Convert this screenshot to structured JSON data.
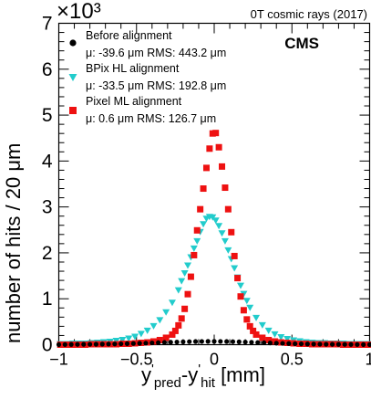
{
  "chart_data": {
    "type": "scatter",
    "header_right": "0T cosmic rays (2017)",
    "experiment_label": "CMS",
    "y_exponent_label": "×10³",
    "xlabel": {
      "main1": "y",
      "sup1": "'",
      "sub1": "pred",
      "mid": "-y",
      "sup2": "'",
      "sub2": "hit",
      "unit": " [mm]"
    },
    "ylabel": "number of hits / 20 μm",
    "xlim": [
      -1,
      1
    ],
    "ylim": [
      0,
      7
    ],
    "xticks": [
      -1,
      -0.5,
      0,
      0.5,
      1
    ],
    "xtick_labels": [
      "−1",
      "−0.5",
      "0",
      "0.5",
      "1"
    ],
    "yticks": [
      0,
      1,
      2,
      3,
      4,
      5,
      6,
      7
    ],
    "ytick_labels": [
      "0",
      "1",
      "2",
      "3",
      "4",
      "5",
      "6",
      "7"
    ],
    "y_scale_factor": 1000,
    "grid": false,
    "legend_position": "top-left",
    "series": [
      {
        "name": "Before alignment",
        "stats": "μ: -39.6 μm RMS: 443.2 μm",
        "marker": "circle",
        "color": "#000000",
        "points": [
          [
            -1.0,
            0.002
          ],
          [
            -0.96,
            0.004
          ],
          [
            -0.92,
            0.005
          ],
          [
            -0.88,
            0.006
          ],
          [
            -0.84,
            0.007
          ],
          [
            -0.8,
            0.009
          ],
          [
            -0.76,
            0.01
          ],
          [
            -0.72,
            0.012
          ],
          [
            -0.68,
            0.014
          ],
          [
            -0.64,
            0.016
          ],
          [
            -0.6,
            0.019
          ],
          [
            -0.56,
            0.022
          ],
          [
            -0.52,
            0.026
          ],
          [
            -0.48,
            0.03
          ],
          [
            -0.44,
            0.034
          ],
          [
            -0.4,
            0.039
          ],
          [
            -0.36,
            0.044
          ],
          [
            -0.32,
            0.049
          ],
          [
            -0.28,
            0.054
          ],
          [
            -0.24,
            0.058
          ],
          [
            -0.2,
            0.062
          ],
          [
            -0.16,
            0.066
          ],
          [
            -0.12,
            0.069
          ],
          [
            -0.08,
            0.071
          ],
          [
            -0.04,
            0.072
          ],
          [
            0.0,
            0.072
          ],
          [
            0.04,
            0.071
          ],
          [
            0.08,
            0.069
          ],
          [
            0.12,
            0.066
          ],
          [
            0.16,
            0.062
          ],
          [
            0.2,
            0.058
          ],
          [
            0.24,
            0.053
          ],
          [
            0.28,
            0.048
          ],
          [
            0.32,
            0.043
          ],
          [
            0.36,
            0.038
          ],
          [
            0.4,
            0.033
          ],
          [
            0.44,
            0.029
          ],
          [
            0.48,
            0.025
          ],
          [
            0.52,
            0.021
          ],
          [
            0.56,
            0.018
          ],
          [
            0.6,
            0.015
          ],
          [
            0.64,
            0.013
          ],
          [
            0.68,
            0.011
          ],
          [
            0.72,
            0.009
          ],
          [
            0.76,
            0.008
          ],
          [
            0.8,
            0.007
          ],
          [
            0.84,
            0.006
          ],
          [
            0.88,
            0.005
          ],
          [
            0.92,
            0.004
          ],
          [
            0.96,
            0.003
          ],
          [
            1.0,
            0.002
          ]
        ]
      },
      {
        "name": "BPix HL alignment",
        "stats": "μ: -33.5 μm RMS: 192.8 μm",
        "marker": "triangle-down",
        "color": "#22cccc",
        "points": [
          [
            -0.99,
            0.01
          ],
          [
            -0.95,
            0.01
          ],
          [
            -0.91,
            0.02
          ],
          [
            -0.87,
            0.02
          ],
          [
            -0.83,
            0.02
          ],
          [
            -0.79,
            0.03
          ],
          [
            -0.75,
            0.04
          ],
          [
            -0.71,
            0.05
          ],
          [
            -0.67,
            0.06
          ],
          [
            -0.63,
            0.08
          ],
          [
            -0.59,
            0.1
          ],
          [
            -0.55,
            0.13
          ],
          [
            -0.51,
            0.17
          ],
          [
            -0.47,
            0.23
          ],
          [
            -0.43,
            0.3
          ],
          [
            -0.39,
            0.4
          ],
          [
            -0.35,
            0.53
          ],
          [
            -0.31,
            0.7
          ],
          [
            -0.27,
            0.91
          ],
          [
            -0.23,
            1.18
          ],
          [
            -0.21,
            1.38
          ],
          [
            -0.19,
            1.55
          ],
          [
            -0.17,
            1.72
          ],
          [
            -0.15,
            1.9
          ],
          [
            -0.13,
            2.09
          ],
          [
            -0.11,
            2.25
          ],
          [
            -0.09,
            2.45
          ],
          [
            -0.07,
            2.62
          ],
          [
            -0.05,
            2.74
          ],
          [
            -0.03,
            2.78
          ],
          [
            -0.01,
            2.77
          ],
          [
            0.01,
            2.7
          ],
          [
            0.03,
            2.58
          ],
          [
            0.05,
            2.42
          ],
          [
            0.07,
            2.25
          ],
          [
            0.09,
            2.05
          ],
          [
            0.11,
            1.86
          ],
          [
            0.13,
            1.66
          ],
          [
            0.15,
            1.46
          ],
          [
            0.17,
            1.28
          ],
          [
            0.19,
            1.1
          ],
          [
            0.21,
            0.95
          ],
          [
            0.23,
            0.8
          ],
          [
            0.27,
            0.58
          ],
          [
            0.31,
            0.42
          ],
          [
            0.35,
            0.3
          ],
          [
            0.39,
            0.22
          ],
          [
            0.43,
            0.16
          ],
          [
            0.47,
            0.12
          ],
          [
            0.51,
            0.09
          ],
          [
            0.55,
            0.07
          ],
          [
            0.59,
            0.05
          ],
          [
            0.63,
            0.04
          ],
          [
            0.67,
            0.03
          ],
          [
            0.71,
            0.03
          ],
          [
            0.75,
            0.02
          ],
          [
            0.79,
            0.02
          ],
          [
            0.83,
            0.02
          ],
          [
            0.87,
            0.01
          ],
          [
            0.91,
            0.01
          ],
          [
            0.95,
            0.01
          ],
          [
            0.99,
            0.01
          ]
        ]
      },
      {
        "name": "Pixel ML alignment",
        "stats": "μ: 0.6 μm RMS: 126.7 μm",
        "marker": "square",
        "color": "#ee1111",
        "points": [
          [
            -0.99,
            0.0
          ],
          [
            -0.95,
            0.0
          ],
          [
            -0.91,
            0.0
          ],
          [
            -0.87,
            0.0
          ],
          [
            -0.83,
            0.0
          ],
          [
            -0.79,
            0.01
          ],
          [
            -0.75,
            0.01
          ],
          [
            -0.71,
            0.01
          ],
          [
            -0.67,
            0.01
          ],
          [
            -0.63,
            0.01
          ],
          [
            -0.59,
            0.02
          ],
          [
            -0.55,
            0.02
          ],
          [
            -0.51,
            0.03
          ],
          [
            -0.47,
            0.04
          ],
          [
            -0.43,
            0.05
          ],
          [
            -0.39,
            0.07
          ],
          [
            -0.35,
            0.1
          ],
          [
            -0.31,
            0.15
          ],
          [
            -0.27,
            0.22
          ],
          [
            -0.25,
            0.3
          ],
          [
            -0.23,
            0.42
          ],
          [
            -0.21,
            0.57
          ],
          [
            -0.19,
            0.78
          ],
          [
            -0.17,
            1.1
          ],
          [
            -0.15,
            1.48
          ],
          [
            -0.13,
            1.95
          ],
          [
            -0.11,
            2.49
          ],
          [
            -0.09,
            2.95
          ],
          [
            -0.07,
            3.4
          ],
          [
            -0.05,
            3.85
          ],
          [
            -0.03,
            4.27
          ],
          [
            -0.01,
            4.6
          ],
          [
            0.01,
            4.61
          ],
          [
            0.03,
            4.3
          ],
          [
            0.05,
            3.88
          ],
          [
            0.07,
            3.42
          ],
          [
            0.09,
            2.95
          ],
          [
            0.11,
            2.45
          ],
          [
            0.13,
            1.93
          ],
          [
            0.15,
            1.45
          ],
          [
            0.17,
            1.05
          ],
          [
            0.19,
            0.75
          ],
          [
            0.21,
            0.55
          ],
          [
            0.23,
            0.4
          ],
          [
            0.25,
            0.3
          ],
          [
            0.27,
            0.22
          ],
          [
            0.31,
            0.15
          ],
          [
            0.35,
            0.1
          ],
          [
            0.39,
            0.07
          ],
          [
            0.43,
            0.05
          ],
          [
            0.47,
            0.04
          ],
          [
            0.51,
            0.03
          ],
          [
            0.55,
            0.02
          ],
          [
            0.59,
            0.02
          ],
          [
            0.63,
            0.01
          ],
          [
            0.67,
            0.01
          ],
          [
            0.71,
            0.01
          ],
          [
            0.75,
            0.01
          ],
          [
            0.79,
            0.01
          ],
          [
            0.83,
            0.0
          ],
          [
            0.87,
            0.0
          ],
          [
            0.91,
            0.0
          ],
          [
            0.95,
            0.0
          ],
          [
            0.99,
            0.0
          ]
        ]
      }
    ]
  }
}
